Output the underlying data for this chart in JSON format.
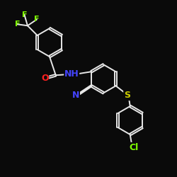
{
  "background_color": "#0a0a0a",
  "bond_color": "#e8e8e8",
  "atom_colors": {
    "F": "#7fff00",
    "O": "#ff2020",
    "N_amide": "#4444ff",
    "N_cyano": "#4444ff",
    "S": "#cccc00",
    "Cl": "#7fff00",
    "C": "#e8e8e8"
  },
  "bond_width": 1.4,
  "font_size": 8,
  "fig_size": [
    2.5,
    2.5
  ],
  "dpi": 100
}
